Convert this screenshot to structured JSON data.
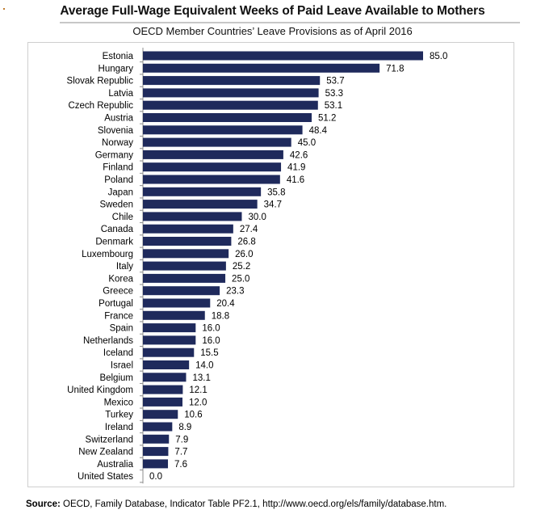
{
  "title": "Average Full-Wage Equivalent Weeks of Paid Leave Available to Mothers",
  "subtitle": "OECD Member Countries’ Leave Provisions as of April 2016",
  "source": {
    "label": "Source:",
    "text": "OECD, Family Database, Indicator Table PF2.1, http://www.oecd.org/els/family/database.htm."
  },
  "colors": {
    "bar": "#1f2a5c",
    "axis": "#8c8c8c",
    "frame": "#cfcfcf"
  },
  "chart_data": {
    "type": "bar",
    "orientation": "horizontal",
    "title": "Average Full-Wage Equivalent Weeks of Paid Leave Available to Mothers",
    "subtitle": "OECD Member Countries’ Leave Provisions as of April 2016",
    "xlabel": "",
    "ylabel": "",
    "xlim": [
      0,
      85
    ],
    "grid": false,
    "data_labels": true,
    "categories": [
      "Estonia",
      "Hungary",
      "Slovak Republic",
      "Latvia",
      "Czech Republic",
      "Austria",
      "Slovenia",
      "Norway",
      "Germany",
      "Finland",
      "Poland",
      "Japan",
      "Sweden",
      "Chile",
      "Canada",
      "Denmark",
      "Luxembourg",
      "Italy",
      "Korea",
      "Greece",
      "Portugal",
      "France",
      "Spain",
      "Netherlands",
      "Iceland",
      "Israel",
      "Belgium",
      "United Kingdom",
      "Mexico",
      "Turkey",
      "Ireland",
      "Switzerland",
      "New Zealand",
      "Australia",
      "United States"
    ],
    "values": [
      85.0,
      71.8,
      53.7,
      53.3,
      53.1,
      51.2,
      48.4,
      45.0,
      42.6,
      41.9,
      41.6,
      35.8,
      34.7,
      30.0,
      27.4,
      26.8,
      26.0,
      25.2,
      25.0,
      23.3,
      20.4,
      18.8,
      16.0,
      16.0,
      15.5,
      14.0,
      13.1,
      12.1,
      12.0,
      10.6,
      8.9,
      7.9,
      7.7,
      7.6,
      0.0
    ],
    "value_labels": [
      "85.0",
      "71.8",
      "53.7",
      "53.3",
      "53.1",
      "51.2",
      "48.4",
      "45.0",
      "42.6",
      "41.9",
      "41.6",
      "35.8",
      "34.7",
      "30.0",
      "27.4",
      "26.8",
      "26.0",
      "25.2",
      "25.0",
      "23.3",
      "20.4",
      "18.8",
      "16.0",
      "16.0",
      "15.5",
      "14.0",
      "13.1",
      "12.1",
      "12.0",
      "10.6",
      "8.9",
      "7.9",
      "7.7",
      "7.6",
      "0.0"
    ]
  }
}
